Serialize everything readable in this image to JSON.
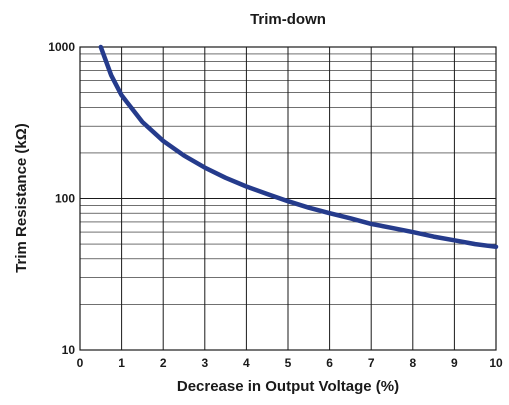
{
  "chart_data": {
    "type": "line",
    "title": "Trim-down",
    "xlabel": "Decrease in Output Voltage (%)",
    "ylabel": "Trim Resistance (kΩ)",
    "x_scale": "linear",
    "y_scale": "log",
    "xlim": [
      0,
      10
    ],
    "ylim": [
      10,
      1000
    ],
    "x_ticks": [
      "0",
      "1",
      "2",
      "3",
      "4",
      "5",
      "6",
      "7",
      "8",
      "9",
      "10"
    ],
    "y_ticks": [
      "10",
      "100",
      "1000"
    ],
    "grid": true,
    "line_color": "#253b8c",
    "series": [
      {
        "x": [
          0.5,
          0.75,
          1,
          1.5,
          2,
          2.5,
          3,
          3.5,
          4,
          4.5,
          5,
          5.5,
          6,
          6.5,
          7,
          7.5,
          8,
          8.5,
          9,
          9.5,
          10
        ],
        "y": [
          1000,
          650,
          480,
          320,
          240,
          192,
          160,
          137,
          120,
          107,
          96,
          87,
          80,
          74,
          68,
          64,
          60,
          56,
          53,
          50,
          48
        ]
      }
    ]
  }
}
